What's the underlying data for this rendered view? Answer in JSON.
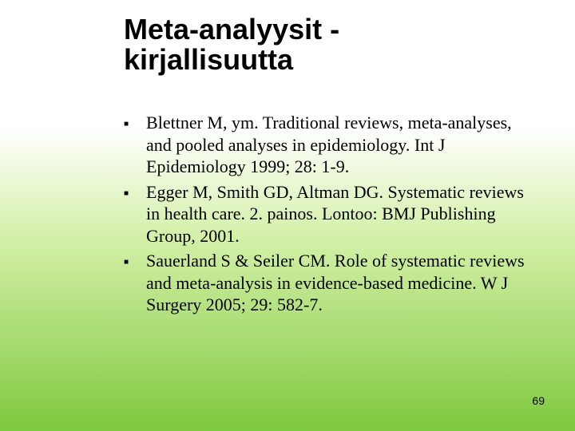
{
  "title_line1": "Meta-analyysit -",
  "title_line2": "kirjallisuutta",
  "bullets": {
    "b0": "Blettner M, ym. Traditional reviews, meta-analyses, and pooled analyses in epidemiology. Int J Epidemiology 1999; 28: 1-9.",
    "b1": "Egger M, Smith GD, Altman DG. Systematic reviews in health care. 2. painos. Lontoo: BMJ Publishing Group, 2001.",
    "b2": "Sauerland S & Seiler CM. Role of systematic reviews and meta-analysis in evidence-based medicine. W J Surgery 2005; 29: 582-7."
  },
  "page_number": "69",
  "colors": {
    "gradient_top": "#ffffff",
    "gradient_mid": "#d4f0a8",
    "gradient_bottom": "#7fc93f",
    "text": "#000000"
  },
  "fonts": {
    "title_family": "Arial",
    "title_size_pt": 28,
    "title_weight": "bold",
    "body_family": "Times New Roman",
    "body_size_pt": 17,
    "pagenum_size_pt": 11
  }
}
